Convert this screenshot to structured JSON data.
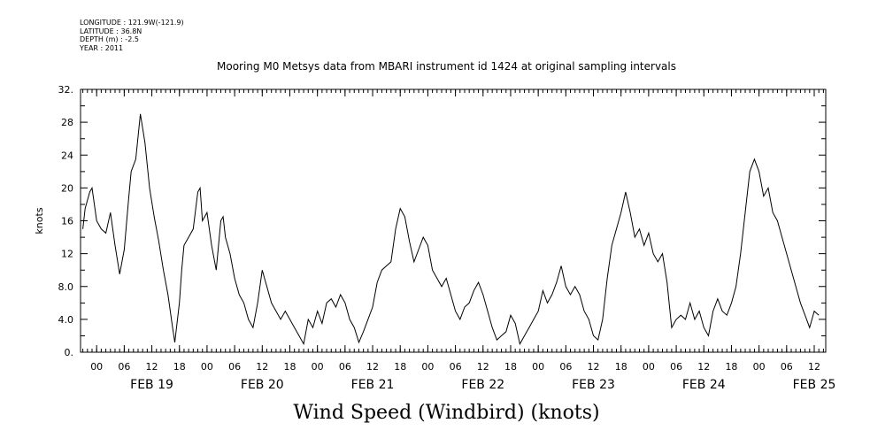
{
  "header": {
    "longitude": "LONGITUDE : 121.9W(-121.9)",
    "latitude": "LATITUDE : 36.8N",
    "depth": "DEPTH (m) : -2.5",
    "year": "YEAR : 2011"
  },
  "chart_data": {
    "type": "line",
    "title": "Mooring M0 Metsys data from MBARI instrument id 1424 at original sampling intervals",
    "xlabel": "Wind Speed (Windbird) (knots)",
    "ylabel": "knots",
    "ylim": [
      0,
      32
    ],
    "yticks": [
      0,
      4,
      8,
      12,
      16,
      20,
      24,
      28,
      32
    ],
    "ytick_labels": [
      "0.",
      "4.0",
      "8.0",
      "12",
      "16",
      "20",
      "24",
      "28",
      "32."
    ],
    "xlim_hours": [
      -3.5,
      158.5
    ],
    "hour_ticks": [
      "00",
      "06",
      "12",
      "18"
    ],
    "days": [
      "FEB 19",
      "FEB 20",
      "FEB 21",
      "FEB 22",
      "FEB 23",
      "FEB 24",
      "FEB 25"
    ],
    "grid": false,
    "series": [
      {
        "points": [
          [
            -3,
            15
          ],
          [
            -2.5,
            17.5
          ],
          [
            -1.5,
            19.5
          ],
          [
            -1,
            20
          ],
          [
            0,
            16
          ],
          [
            1,
            15
          ],
          [
            2,
            14.5
          ],
          [
            3,
            17
          ],
          [
            4,
            13
          ],
          [
            5,
            9.5
          ],
          [
            6,
            12.5
          ],
          [
            7,
            19
          ],
          [
            7.5,
            22
          ],
          [
            8.5,
            23.5
          ],
          [
            9.5,
            29
          ],
          [
            10.5,
            25.5
          ],
          [
            11.5,
            20
          ],
          [
            12.5,
            16.5
          ],
          [
            13.5,
            13.5
          ],
          [
            14.5,
            10
          ],
          [
            15.5,
            7
          ],
          [
            16.5,
            3
          ],
          [
            17,
            1.2
          ],
          [
            18,
            6
          ],
          [
            18.5,
            10
          ],
          [
            19,
            13
          ],
          [
            20,
            14
          ],
          [
            21,
            15
          ],
          [
            22,
            19.5
          ],
          [
            22.5,
            20
          ],
          [
            23,
            16
          ],
          [
            24,
            17
          ],
          [
            25,
            13
          ],
          [
            26,
            10
          ],
          [
            27,
            16
          ],
          [
            27.5,
            16.5
          ],
          [
            28,
            14
          ],
          [
            29,
            12
          ],
          [
            30,
            9
          ],
          [
            31,
            7
          ],
          [
            32,
            6
          ],
          [
            33,
            4
          ],
          [
            34,
            3
          ],
          [
            35,
            6
          ],
          [
            36,
            10
          ],
          [
            37,
            8
          ],
          [
            38,
            6
          ],
          [
            39,
            5
          ],
          [
            40,
            4
          ],
          [
            41,
            5
          ],
          [
            42,
            4
          ],
          [
            43,
            3
          ],
          [
            44,
            2
          ],
          [
            45,
            1
          ],
          [
            46,
            4
          ],
          [
            47,
            3
          ],
          [
            48,
            5
          ],
          [
            49,
            3.5
          ],
          [
            50,
            6
          ],
          [
            51,
            6.5
          ],
          [
            52,
            5.5
          ],
          [
            53,
            7
          ],
          [
            54,
            6
          ],
          [
            55,
            4
          ],
          [
            56,
            3
          ],
          [
            57,
            1.2
          ],
          [
            58,
            2.5
          ],
          [
            59,
            4
          ],
          [
            60,
            5.5
          ],
          [
            61,
            8.5
          ],
          [
            62,
            10
          ],
          [
            63,
            10.5
          ],
          [
            64,
            11
          ],
          [
            65,
            15
          ],
          [
            66,
            17.5
          ],
          [
            67,
            16.5
          ],
          [
            68,
            13.5
          ],
          [
            69,
            11
          ],
          [
            70,
            12.5
          ],
          [
            71,
            14
          ],
          [
            72,
            13
          ],
          [
            73,
            10
          ],
          [
            74,
            9
          ],
          [
            75,
            8
          ],
          [
            76,
            9
          ],
          [
            77,
            7
          ],
          [
            78,
            5
          ],
          [
            79,
            4
          ],
          [
            80,
            5.5
          ],
          [
            81,
            6
          ],
          [
            82,
            7.5
          ],
          [
            83,
            8.5
          ],
          [
            84,
            7
          ],
          [
            85,
            5
          ],
          [
            86,
            3
          ],
          [
            87,
            1.5
          ],
          [
            88,
            2
          ],
          [
            89,
            2.5
          ],
          [
            90,
            4.5
          ],
          [
            91,
            3.5
          ],
          [
            92,
            1
          ],
          [
            93,
            2
          ],
          [
            94,
            3
          ],
          [
            95,
            4
          ],
          [
            96,
            5
          ],
          [
            97,
            7.5
          ],
          [
            98,
            6
          ],
          [
            99,
            7
          ],
          [
            100,
            8.5
          ],
          [
            101,
            10.5
          ],
          [
            102,
            8
          ],
          [
            103,
            7
          ],
          [
            104,
            8
          ],
          [
            105,
            7
          ],
          [
            106,
            5
          ],
          [
            107,
            4
          ],
          [
            108,
            2
          ],
          [
            109,
            1.5
          ],
          [
            110,
            4
          ],
          [
            111,
            9
          ],
          [
            112,
            13
          ],
          [
            113,
            15
          ],
          [
            114,
            17
          ],
          [
            115,
            19.5
          ],
          [
            116,
            17
          ],
          [
            117,
            14
          ],
          [
            118,
            15
          ],
          [
            119,
            13
          ],
          [
            120,
            14.5
          ],
          [
            121,
            12
          ],
          [
            122,
            11
          ],
          [
            123,
            12
          ],
          [
            124,
            8.5
          ],
          [
            125,
            3
          ],
          [
            126,
            4
          ],
          [
            127,
            4.5
          ],
          [
            128,
            4
          ],
          [
            129,
            6
          ],
          [
            130,
            4
          ],
          [
            131,
            5
          ],
          [
            132,
            3
          ],
          [
            133,
            2
          ],
          [
            134,
            5
          ],
          [
            135,
            6.5
          ],
          [
            136,
            5
          ],
          [
            137,
            4.5
          ],
          [
            138,
            6
          ],
          [
            139,
            8
          ],
          [
            140,
            12
          ],
          [
            141,
            17
          ],
          [
            142,
            22
          ],
          [
            143,
            23.5
          ],
          [
            144,
            22
          ],
          [
            145,
            19
          ],
          [
            146,
            20
          ],
          [
            147,
            17
          ],
          [
            148,
            16
          ],
          [
            149,
            14
          ],
          [
            150,
            12
          ],
          [
            151,
            10
          ],
          [
            152,
            8
          ],
          [
            153,
            6
          ],
          [
            154,
            4.5
          ],
          [
            155,
            3
          ],
          [
            156,
            5
          ],
          [
            157,
            4.5
          ]
        ]
      }
    ]
  }
}
